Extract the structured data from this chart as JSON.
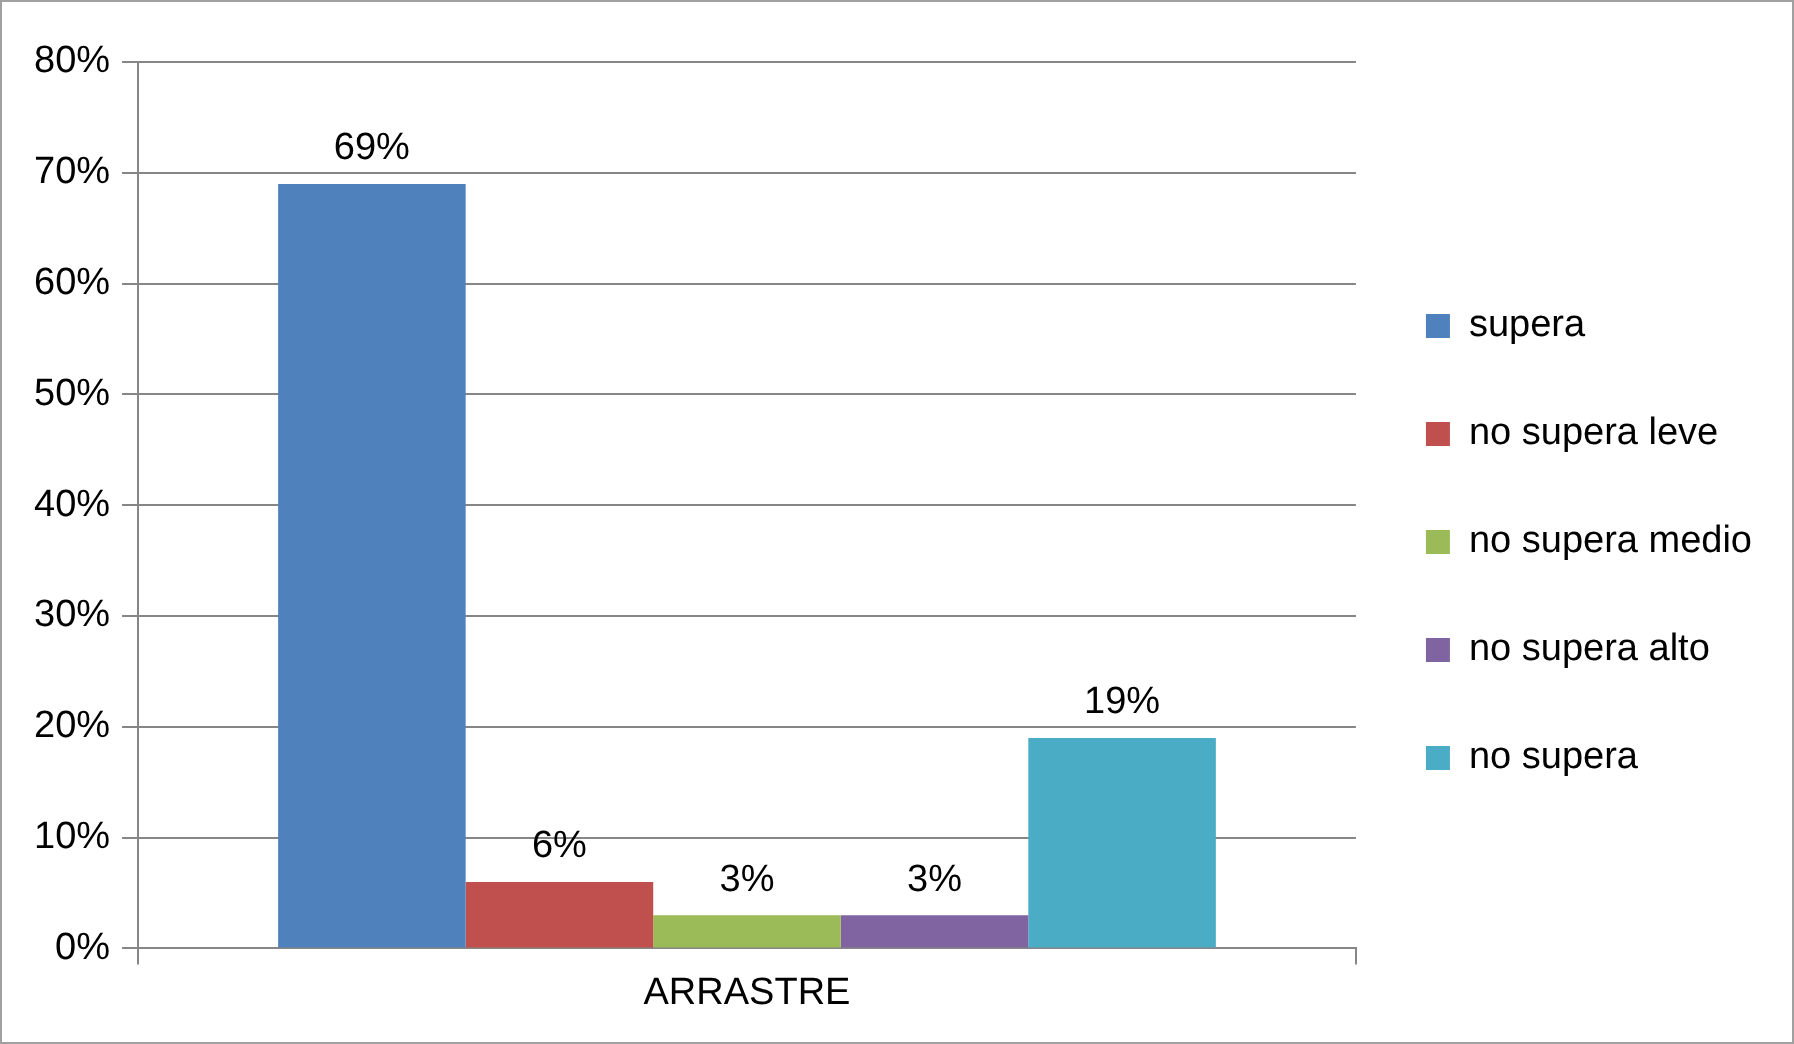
{
  "chart_data": {
    "type": "bar",
    "categories": [
      "ARRASTRE"
    ],
    "series": [
      {
        "name": "supera",
        "color": "#4f81bd",
        "values": [
          69
        ],
        "value_labels": [
          "69%"
        ]
      },
      {
        "name": "no supera leve",
        "color": "#c0504d",
        "values": [
          6
        ],
        "value_labels": [
          "6%"
        ]
      },
      {
        "name": "no supera medio",
        "color": "#9bbb59",
        "values": [
          3
        ],
        "value_labels": [
          "3%"
        ]
      },
      {
        "name": "no supera alto",
        "color": "#8064a2",
        "values": [
          3
        ],
        "value_labels": [
          "3%"
        ]
      },
      {
        "name": "no supera",
        "color": "#4bacc6",
        "values": [
          19
        ],
        "value_labels": [
          "19%"
        ]
      }
    ],
    "ylim": [
      0,
      80
    ],
    "yticks": [
      {
        "value": 0,
        "label": "0%"
      },
      {
        "value": 10,
        "label": "10%"
      },
      {
        "value": 20,
        "label": "20%"
      },
      {
        "value": 30,
        "label": "30%"
      },
      {
        "value": 40,
        "label": "40%"
      },
      {
        "value": 50,
        "label": "50%"
      },
      {
        "value": 60,
        "label": "60%"
      },
      {
        "value": 70,
        "label": "70%"
      },
      {
        "value": 80,
        "label": "80%"
      }
    ],
    "grid": "y",
    "legend": "right"
  }
}
